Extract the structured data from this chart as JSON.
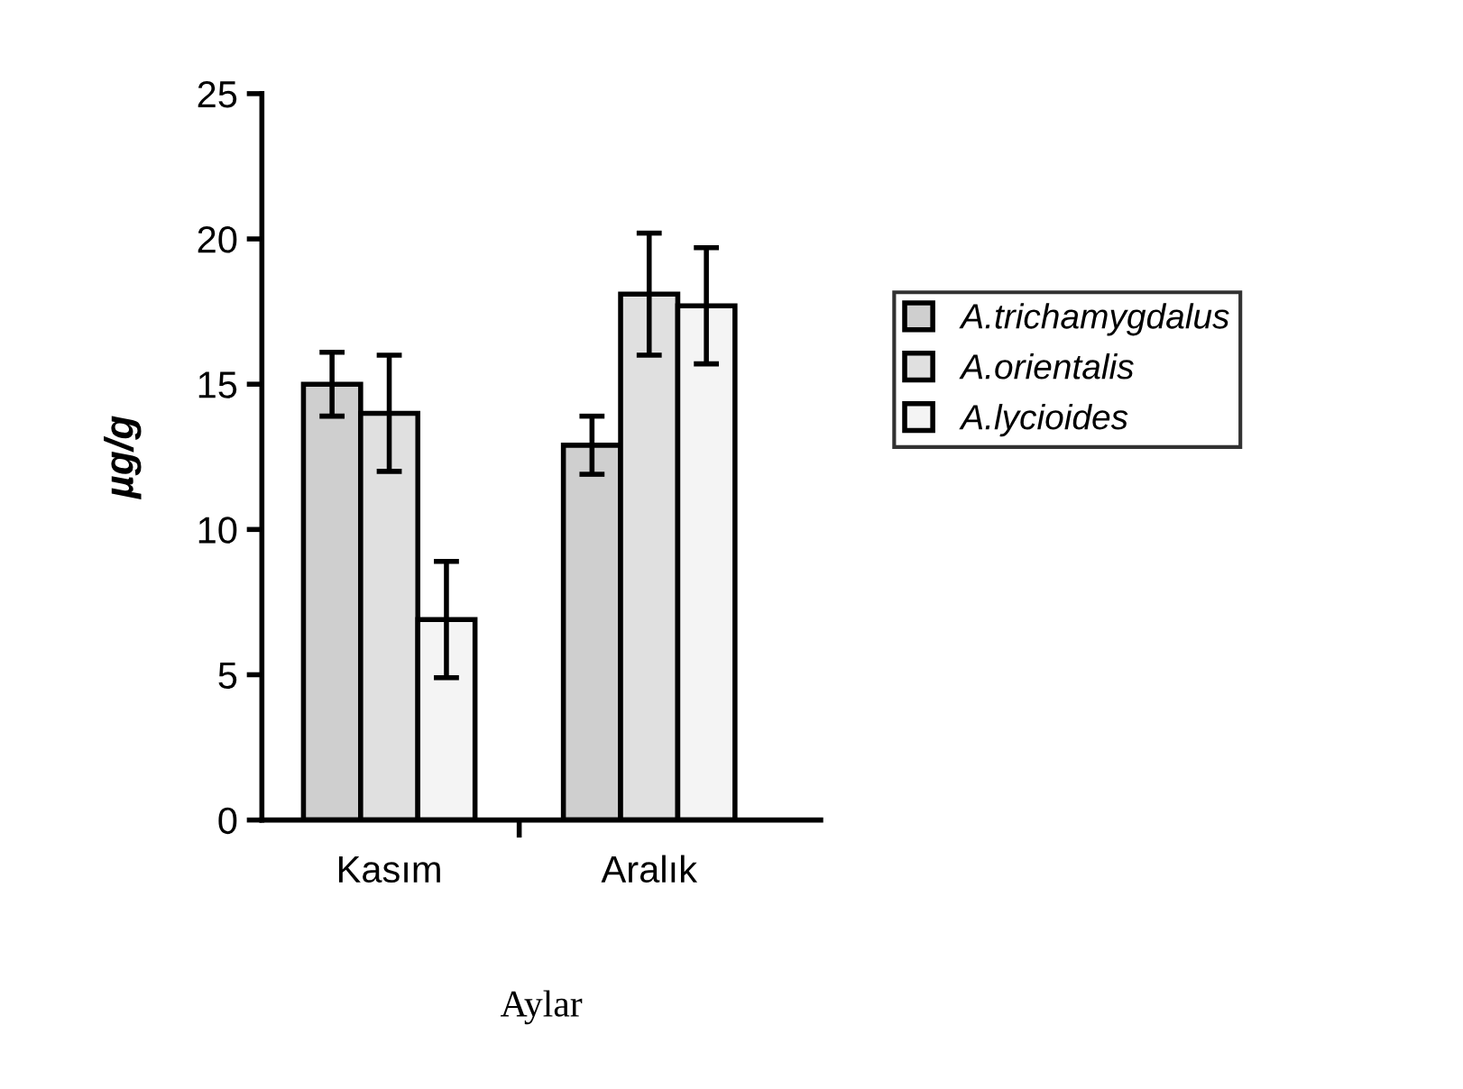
{
  "chart_data": {
    "type": "bar",
    "categories": [
      "Kasım",
      "Aralık"
    ],
    "xlabel": "Aylar",
    "ylabel": "µg/g",
    "ylim": [
      0,
      25
    ],
    "yticks": [
      0,
      5,
      10,
      15,
      20,
      25
    ],
    "legend": "right",
    "grid": false,
    "series": [
      {
        "name": "A.trichamygdalus",
        "color": "#cfcfcf",
        "values": [
          15.0,
          12.9
        ],
        "errors": [
          1.1,
          1.0
        ]
      },
      {
        "name": "A.orientalis",
        "color": "#e0e0e0",
        "values": [
          14.0,
          18.1
        ],
        "errors": [
          2.0,
          2.1
        ]
      },
      {
        "name": "A.lycioides",
        "color": "#f4f4f4",
        "values": [
          6.9,
          17.7
        ],
        "errors": [
          2.0,
          2.0
        ]
      }
    ]
  }
}
